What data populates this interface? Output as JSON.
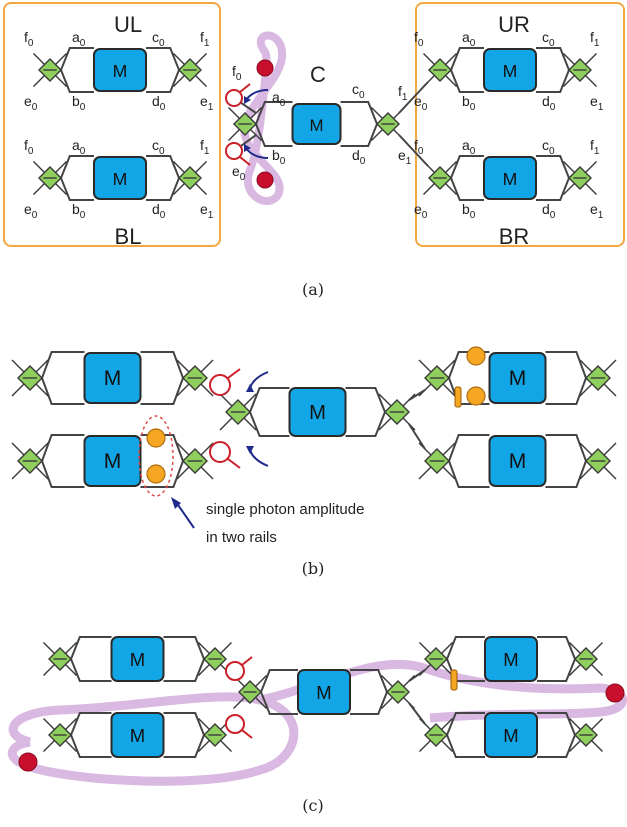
{
  "colors": {
    "module": "#12a6e6",
    "fusion_node": "#8fcf5e",
    "frame": "#f4a640",
    "detector": "#cc1f2a",
    "photon": "#c8102e",
    "entanglement_glow": "#c99ad6",
    "arrow": "#1f2a8a",
    "amplitude": "#f5a623"
  },
  "module_label": "M",
  "panel_a": {
    "caption": "(a)",
    "quadrants": {
      "ul": "UL",
      "ur": "UR",
      "bl": "BL",
      "br": "BR"
    },
    "center": "C",
    "port_labels": {
      "f0": "f",
      "e0": "e",
      "a0": "a",
      "b0": "b",
      "c0": "c",
      "d0": "d",
      "f1": "f",
      "e1": "e",
      "sub0": "0",
      "sub1": "1"
    }
  },
  "panel_b": {
    "caption": "(b)",
    "annotation_line1": "single photon amplitude",
    "annotation_line2": "in two rails"
  },
  "panel_c": {
    "caption": "(c)"
  }
}
